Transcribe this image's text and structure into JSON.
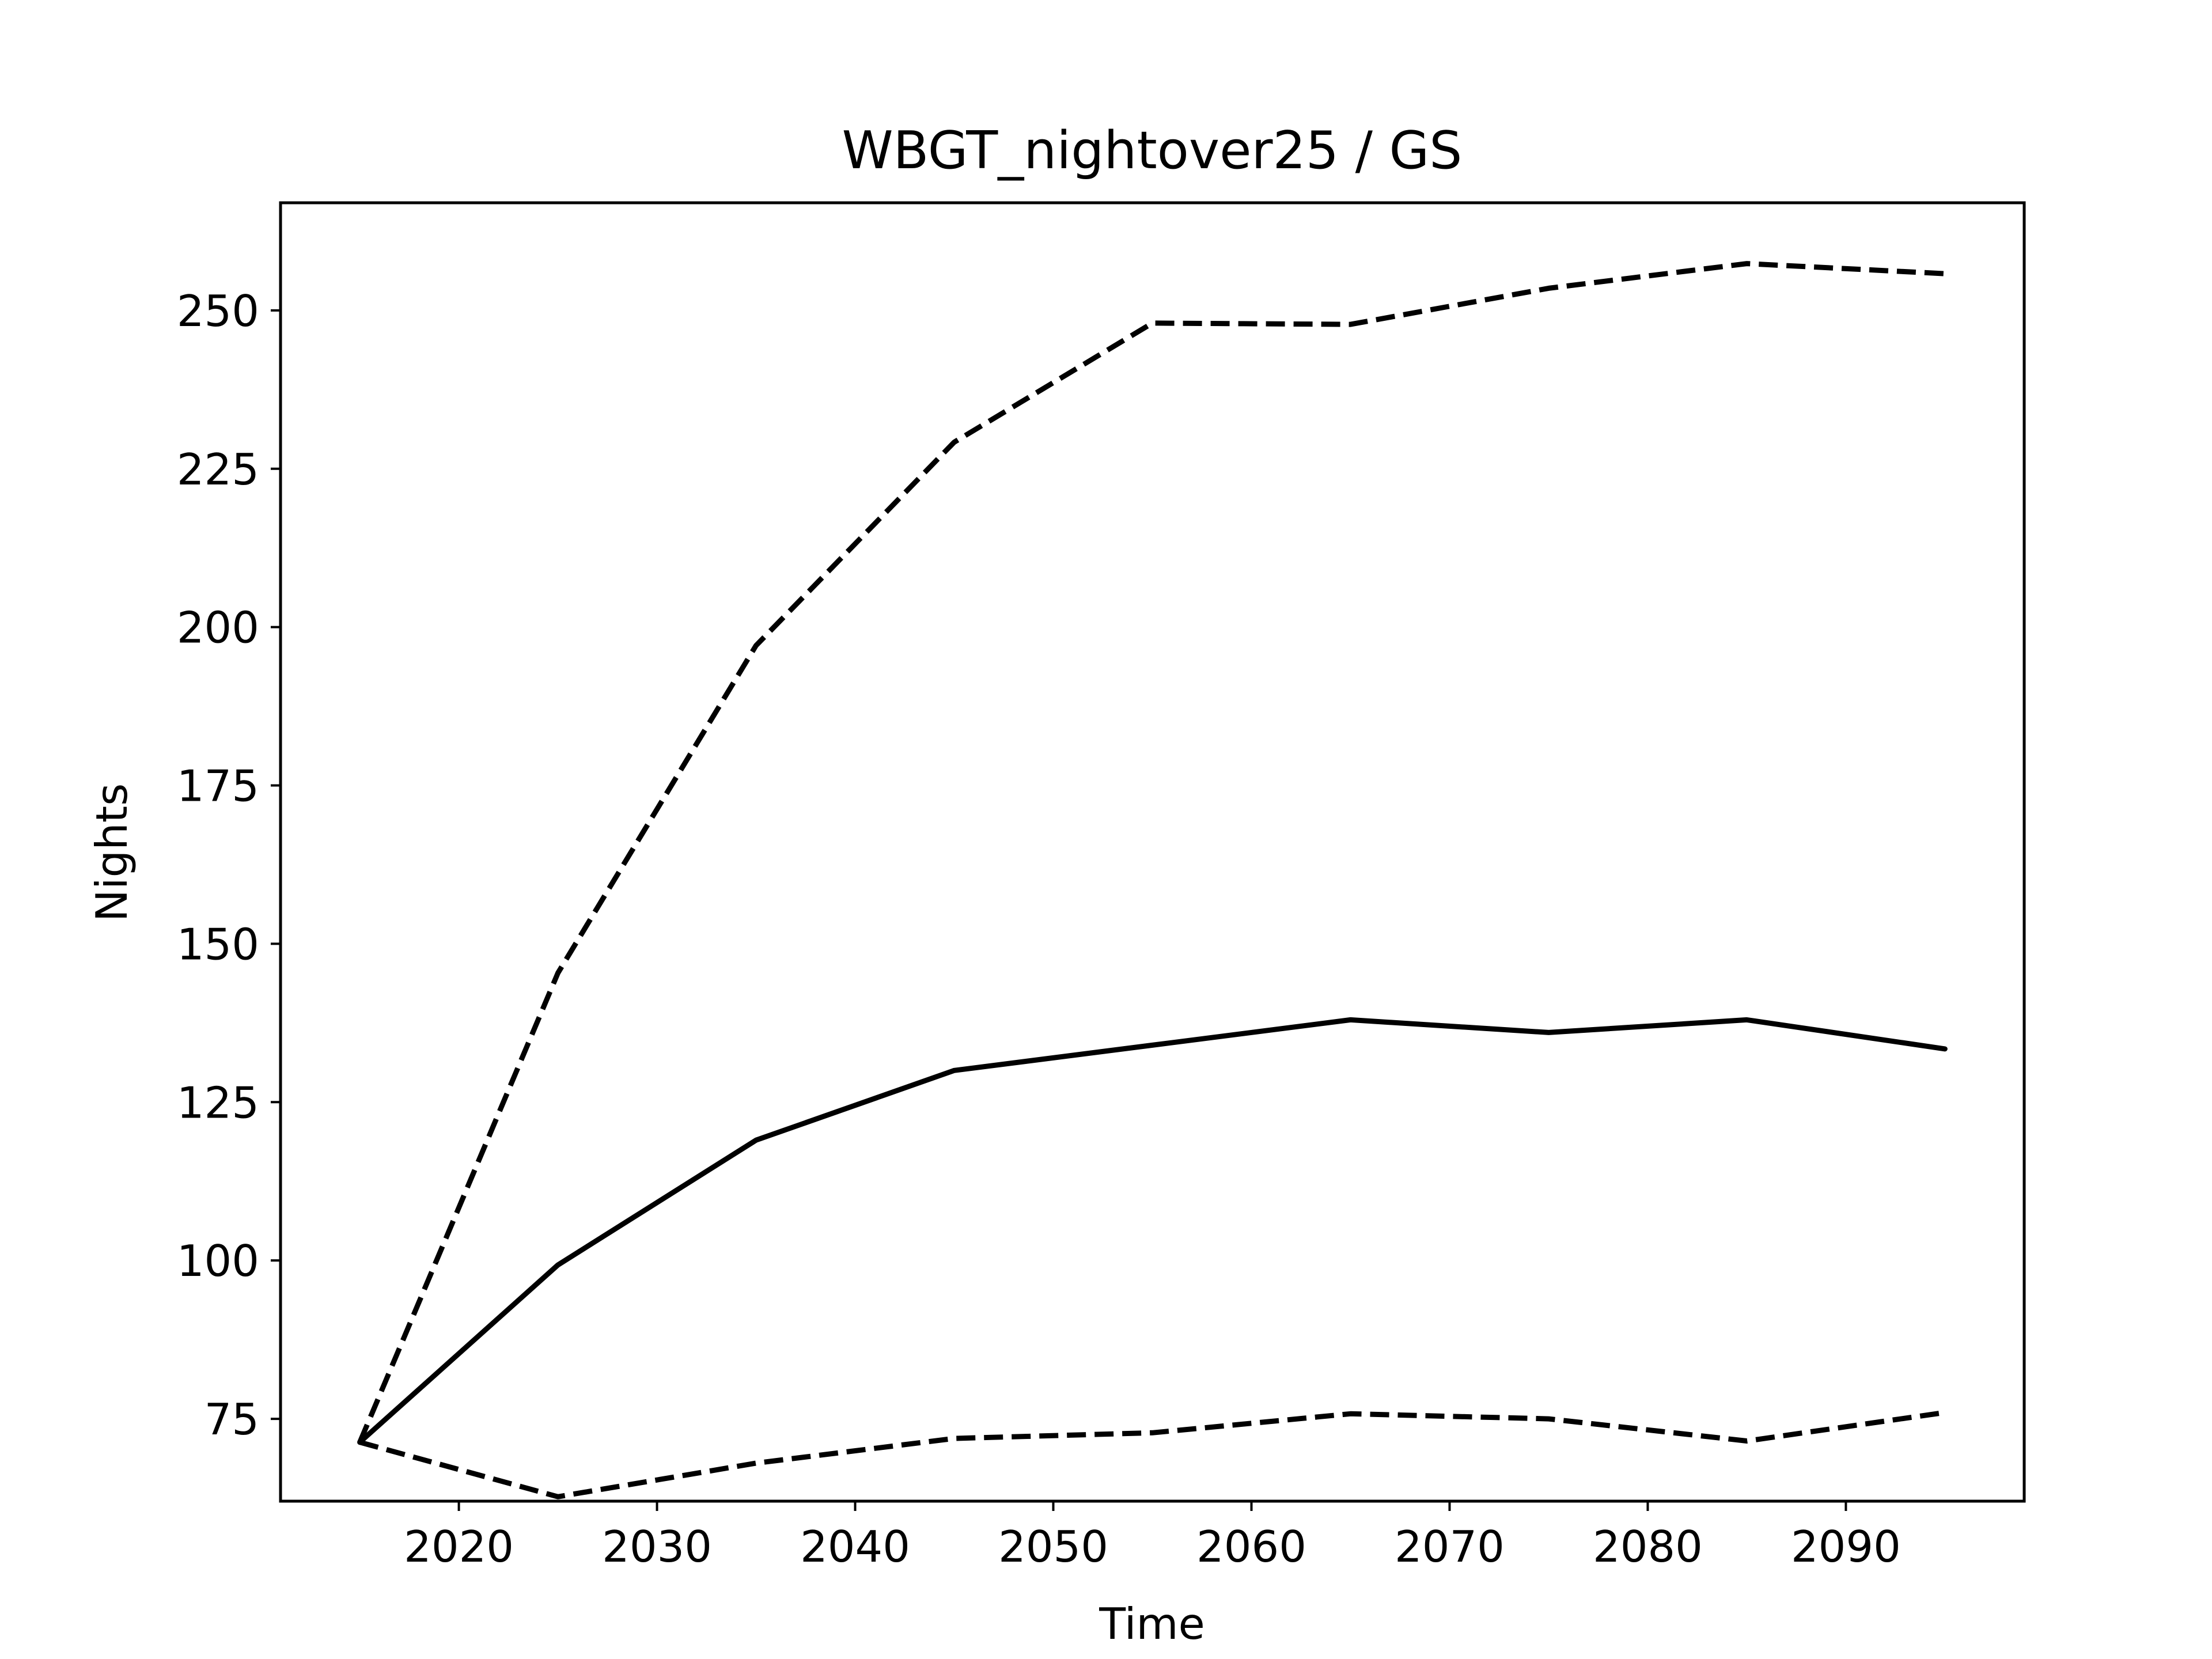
{
  "chart_data": {
    "type": "line",
    "title": "WBGT_nightover25 / GS",
    "xlabel": "Time",
    "ylabel": "Nights",
    "xlim": [
      2011,
      2099
    ],
    "ylim": [
      62,
      267
    ],
    "x_ticks": [
      2020,
      2030,
      2040,
      2050,
      2060,
      2070,
      2080,
      2090
    ],
    "y_ticks": [
      75,
      100,
      125,
      150,
      175,
      200,
      225,
      250
    ],
    "x_tick_labels": [
      "2020",
      "2030",
      "2040",
      "2050",
      "2060",
      "2070",
      "2080",
      "2090"
    ],
    "y_tick_labels": [
      "75",
      "100",
      "125",
      "150",
      "175",
      "200",
      "225",
      "250"
    ],
    "grid": false,
    "x": [
      2015,
      2025,
      2035,
      2045,
      2055,
      2065,
      2075,
      2085,
      2095
    ],
    "series": [
      {
        "style": "solid",
        "color": "#000000",
        "values": [
          71.3,
          99.3,
          119.0,
          130.0,
          134.0,
          138.0,
          136.0,
          138.0,
          133.4
        ]
      },
      {
        "style": "dashed",
        "color": "#000000",
        "values": [
          71.3,
          145.4,
          197.1,
          229.2,
          248.0,
          247.8,
          253.5,
          257.4,
          255.8
        ]
      },
      {
        "style": "dashed",
        "color": "#000000",
        "values": [
          71.3,
          62.7,
          68.0,
          71.9,
          72.8,
          75.8,
          75.0,
          71.5,
          76.0
        ]
      }
    ]
  }
}
